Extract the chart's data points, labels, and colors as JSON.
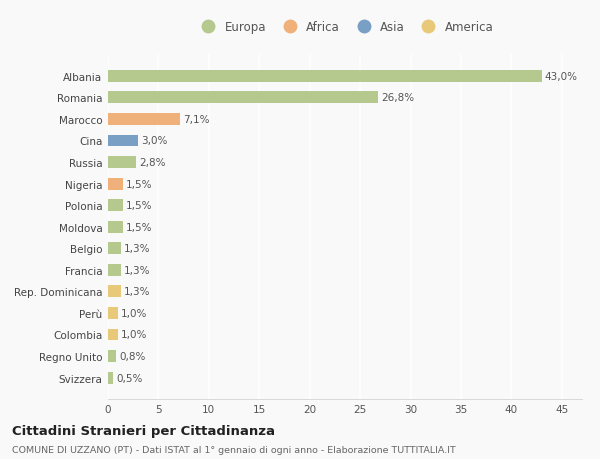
{
  "categories": [
    "Albania",
    "Romania",
    "Marocco",
    "Cina",
    "Russia",
    "Nigeria",
    "Polonia",
    "Moldova",
    "Belgio",
    "Francia",
    "Rep. Dominicana",
    "Perù",
    "Colombia",
    "Regno Unito",
    "Svizzera"
  ],
  "values": [
    43.0,
    26.8,
    7.1,
    3.0,
    2.8,
    1.5,
    1.5,
    1.5,
    1.3,
    1.3,
    1.3,
    1.0,
    1.0,
    0.8,
    0.5
  ],
  "labels": [
    "43,0%",
    "26,8%",
    "7,1%",
    "3,0%",
    "2,8%",
    "1,5%",
    "1,5%",
    "1,5%",
    "1,3%",
    "1,3%",
    "1,3%",
    "1,0%",
    "1,0%",
    "0,8%",
    "0,5%"
  ],
  "colors": [
    "#b5c98e",
    "#b5c98e",
    "#f0b07a",
    "#7a9fc4",
    "#b5c98e",
    "#f0b07a",
    "#b5c98e",
    "#b5c98e",
    "#b5c98e",
    "#b5c98e",
    "#e8c97a",
    "#e8c97a",
    "#e8c97a",
    "#b5c98e",
    "#b5c98e"
  ],
  "legend_labels": [
    "Europa",
    "Africa",
    "Asia",
    "America"
  ],
  "legend_colors": [
    "#b5c98e",
    "#f0b07a",
    "#7a9fc4",
    "#e8c97a"
  ],
  "title": "Cittadini Stranieri per Cittadinanza",
  "subtitle": "COMUNE DI UZZANO (PT) - Dati ISTAT al 1° gennaio di ogni anno - Elaborazione TUTTITALIA.IT",
  "xlim": [
    0,
    47
  ],
  "xticks": [
    0,
    5,
    10,
    15,
    20,
    25,
    30,
    35,
    40,
    45
  ],
  "background_color": "#f9f9f9",
  "grid_color": "#e8e8e8",
  "bar_height": 0.55,
  "label_fontsize": 7.5,
  "ytick_fontsize": 7.5,
  "xtick_fontsize": 7.5
}
